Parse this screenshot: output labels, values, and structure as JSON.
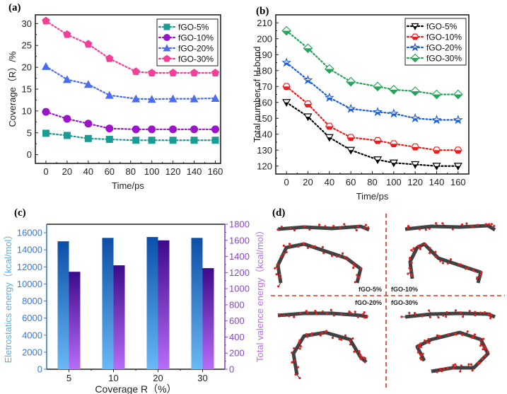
{
  "chart_data": [
    {
      "panel": "(a)",
      "type": "line",
      "title": "",
      "xlabel": "Time/ps",
      "ylabel": "Coverage（R）/%",
      "x": [
        0,
        20,
        40,
        60,
        85,
        100,
        120,
        140,
        160
      ],
      "xticks": [
        0,
        20,
        40,
        60,
        80,
        100,
        120,
        140,
        160
      ],
      "yticks": [
        0,
        5,
        10,
        15,
        20,
        25,
        30
      ],
      "xlim": [
        -10,
        165
      ],
      "ylim": [
        -2,
        32
      ],
      "legend_position": "top-right",
      "series": [
        {
          "name": "fGO-5%",
          "color": "#1a9b94",
          "marker": "square",
          "values": [
            4.9,
            4.4,
            3.7,
            3.5,
            3.3,
            3.3,
            3.3,
            3.3,
            3.3
          ]
        },
        {
          "name": "fGO-10%",
          "color": "#9b14c9",
          "marker": "circle",
          "values": [
            9.8,
            8.2,
            7.1,
            6.0,
            5.8,
            5.8,
            5.8,
            5.8,
            5.8
          ]
        },
        {
          "name": "fGO-20%",
          "color": "#4b6cf0",
          "marker": "triangle-up",
          "values": [
            20.2,
            17.2,
            16.1,
            13.6,
            12.8,
            12.7,
            12.8,
            12.8,
            12.9
          ]
        },
        {
          "name": "fGO-30%",
          "color": "#f23f98",
          "marker": "pentagon",
          "values": [
            30.6,
            27.5,
            25.3,
            22.0,
            19.0,
            18.7,
            18.7,
            18.7,
            18.7
          ]
        }
      ]
    },
    {
      "panel": "(b)",
      "type": "line",
      "title": "",
      "xlabel": "Time/ps",
      "ylabel": "Total number of H-bond",
      "x": [
        0,
        20,
        40,
        60,
        85,
        100,
        120,
        140,
        160
      ],
      "xticks": [
        0,
        20,
        40,
        60,
        80,
        100,
        120,
        140,
        160
      ],
      "yticks": [
        120,
        130,
        140,
        150,
        160,
        170,
        180,
        190,
        200,
        210
      ],
      "xlim": [
        -10,
        170
      ],
      "ylim": [
        115,
        215
      ],
      "legend_position": "top-right",
      "series": [
        {
          "name": "fGO-5%",
          "color": "#000000",
          "marker": "triangle-down-half",
          "values": [
            160,
            151,
            138,
            130,
            124,
            122,
            121,
            120,
            120
          ]
        },
        {
          "name": "fGO-10%",
          "color": "#f01c1c",
          "marker": "hexagon-half",
          "values": [
            170,
            159,
            145,
            138,
            136,
            134,
            132,
            130,
            130
          ]
        },
        {
          "name": "fGO-20%",
          "color": "#1f5fd6",
          "marker": "star-half",
          "values": [
            185,
            174,
            163,
            156,
            154,
            153,
            150,
            149,
            149
          ]
        },
        {
          "name": "fGO-30%",
          "color": "#27a35a",
          "marker": "diamond-half",
          "values": [
            205,
            194,
            181,
            173,
            170,
            168,
            167,
            165,
            165
          ]
        }
      ]
    },
    {
      "panel": "(c)",
      "type": "bar",
      "title": "",
      "xlabel": "Coverage R（%）",
      "ylabel": "Eletrostatics energy（kcal/mol）",
      "ylabel_right": "Total valence energy（kcal/mol）",
      "categories": [
        "5",
        "10",
        "20",
        "30"
      ],
      "ylim": [
        0,
        17000
      ],
      "ylim_right": [
        0,
        1800
      ],
      "yticks": [
        0,
        2000,
        4000,
        6000,
        8000,
        10000,
        12000,
        14000,
        16000
      ],
      "yticks_right": [
        0,
        200,
        400,
        600,
        800,
        1000,
        1200,
        1400,
        1600,
        1800
      ],
      "left_axis_color": "#3a78c9",
      "right_axis_color": "#8a44c9",
      "series": [
        {
          "name": "Eletrostatics energy",
          "axis": "left",
          "color_top": "#0c4fa8",
          "color_bottom": "#6ab8f5",
          "values": [
            15000,
            15400,
            15500,
            15400
          ]
        },
        {
          "name": "Total valence energy",
          "axis": "right",
          "color_top": "#3d0a8c",
          "color_bottom": "#b86cf7",
          "values": [
            1210,
            1290,
            1600,
            1255
          ]
        }
      ]
    }
  ],
  "panels": {
    "a_label": "(a)",
    "b_label": "(b)",
    "c_label": "(c)",
    "d_label": "(d)"
  },
  "snapshots": {
    "labels": [
      "fGO-5%",
      "fGO-10%",
      "fGO-20%",
      "fGO-30%"
    ],
    "divider_color": "#e0311f"
  }
}
